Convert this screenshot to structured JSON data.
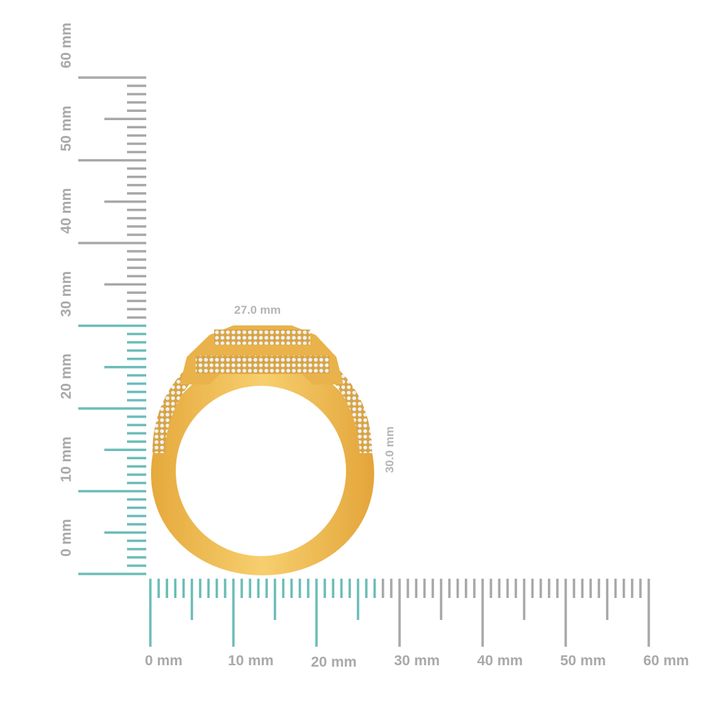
{
  "ruler": {
    "unit": "mm",
    "max": 60,
    "highlight_color": "#6bbdb8",
    "base_color": "#a8a8a8",
    "horizontal_highlight_mm": 27,
    "vertical_highlight_mm": 30,
    "horizontal_labels": [
      "0 mm",
      "10 mm",
      "20 mm",
      "30 mm",
      "40 mm",
      "50 mm",
      "60 mm"
    ],
    "vertical_labels": [
      "0 mm",
      "10 mm",
      "20 mm",
      "30 mm",
      "40 mm",
      "50 mm",
      "60 mm"
    ]
  },
  "dimensions": {
    "width_label": "27.0 mm",
    "height_label": "30.0 mm"
  },
  "product": {
    "metal_color": "#f0c25a",
    "stone_color": "#e8eef2"
  }
}
